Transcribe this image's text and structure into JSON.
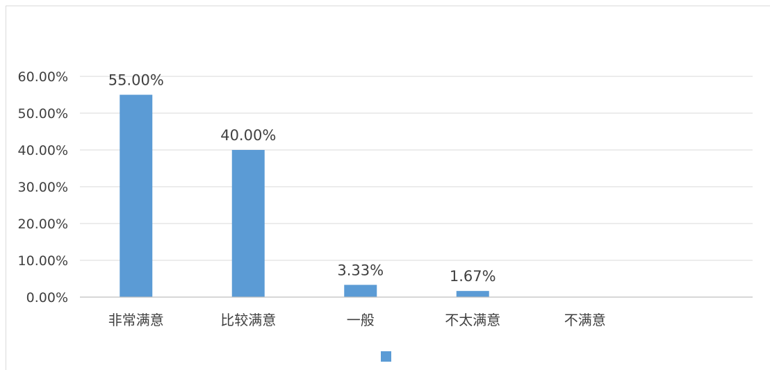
{
  "colors": {
    "bar": "#5b9bd5",
    "gridline": "#d9d9d9",
    "axis": "#bfbfbf",
    "text": "#404040"
  },
  "chart_data": {
    "type": "bar",
    "title": "",
    "xlabel": "",
    "ylabel": "",
    "categories": [
      "非常满意",
      "比较满意",
      "一般",
      "不太满意",
      "不满意"
    ],
    "series": [
      {
        "values": [
          55.0,
          40.0,
          3.33,
          1.67,
          0
        ],
        "data_labels": [
          "55.00%",
          "40.00%",
          "3.33%",
          "1.67%",
          null
        ]
      }
    ],
    "ylim": [
      0,
      60
    ],
    "yticks": [
      0,
      10,
      20,
      30,
      40,
      50,
      60
    ],
    "ytick_labels": [
      "0.00%",
      "10.00%",
      "20.00%",
      "30.00%",
      "40.00%",
      "50.00%",
      "60.00%"
    ],
    "grid": true,
    "legend": {
      "position": "bottom",
      "entries": [
        ""
      ]
    }
  }
}
